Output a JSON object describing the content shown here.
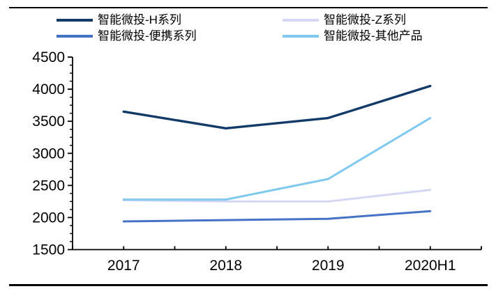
{
  "chart_data": {
    "type": "line",
    "categories": [
      "2017",
      "2018",
      "2019",
      "2020H1"
    ],
    "series": [
      {
        "name": "智能微投-H系列",
        "color": "#143A69",
        "values": [
          3650,
          3390,
          3550,
          4050
        ]
      },
      {
        "name": "智能微投-Z系列",
        "color": "#D6D6F5",
        "values": [
          2270,
          2250,
          2250,
          2430
        ]
      },
      {
        "name": "智能微投-便携系列",
        "color": "#4472C4",
        "values": [
          1940,
          1960,
          1980,
          2100
        ]
      },
      {
        "name": "智能微投-其他产品",
        "color": "#7FC9EE",
        "values": [
          2280,
          2280,
          2600,
          3550
        ]
      }
    ],
    "title": "",
    "xlabel": "",
    "ylabel": "",
    "ylim": [
      1500,
      4500
    ],
    "y_major_step": 500,
    "y_minor_step": 125,
    "y_tick_labels": [
      "1500",
      "2000",
      "2500",
      "3000",
      "3500",
      "4000",
      "4500"
    ],
    "grid": false,
    "legend_position": "top",
    "axis_color": "#000000"
  }
}
